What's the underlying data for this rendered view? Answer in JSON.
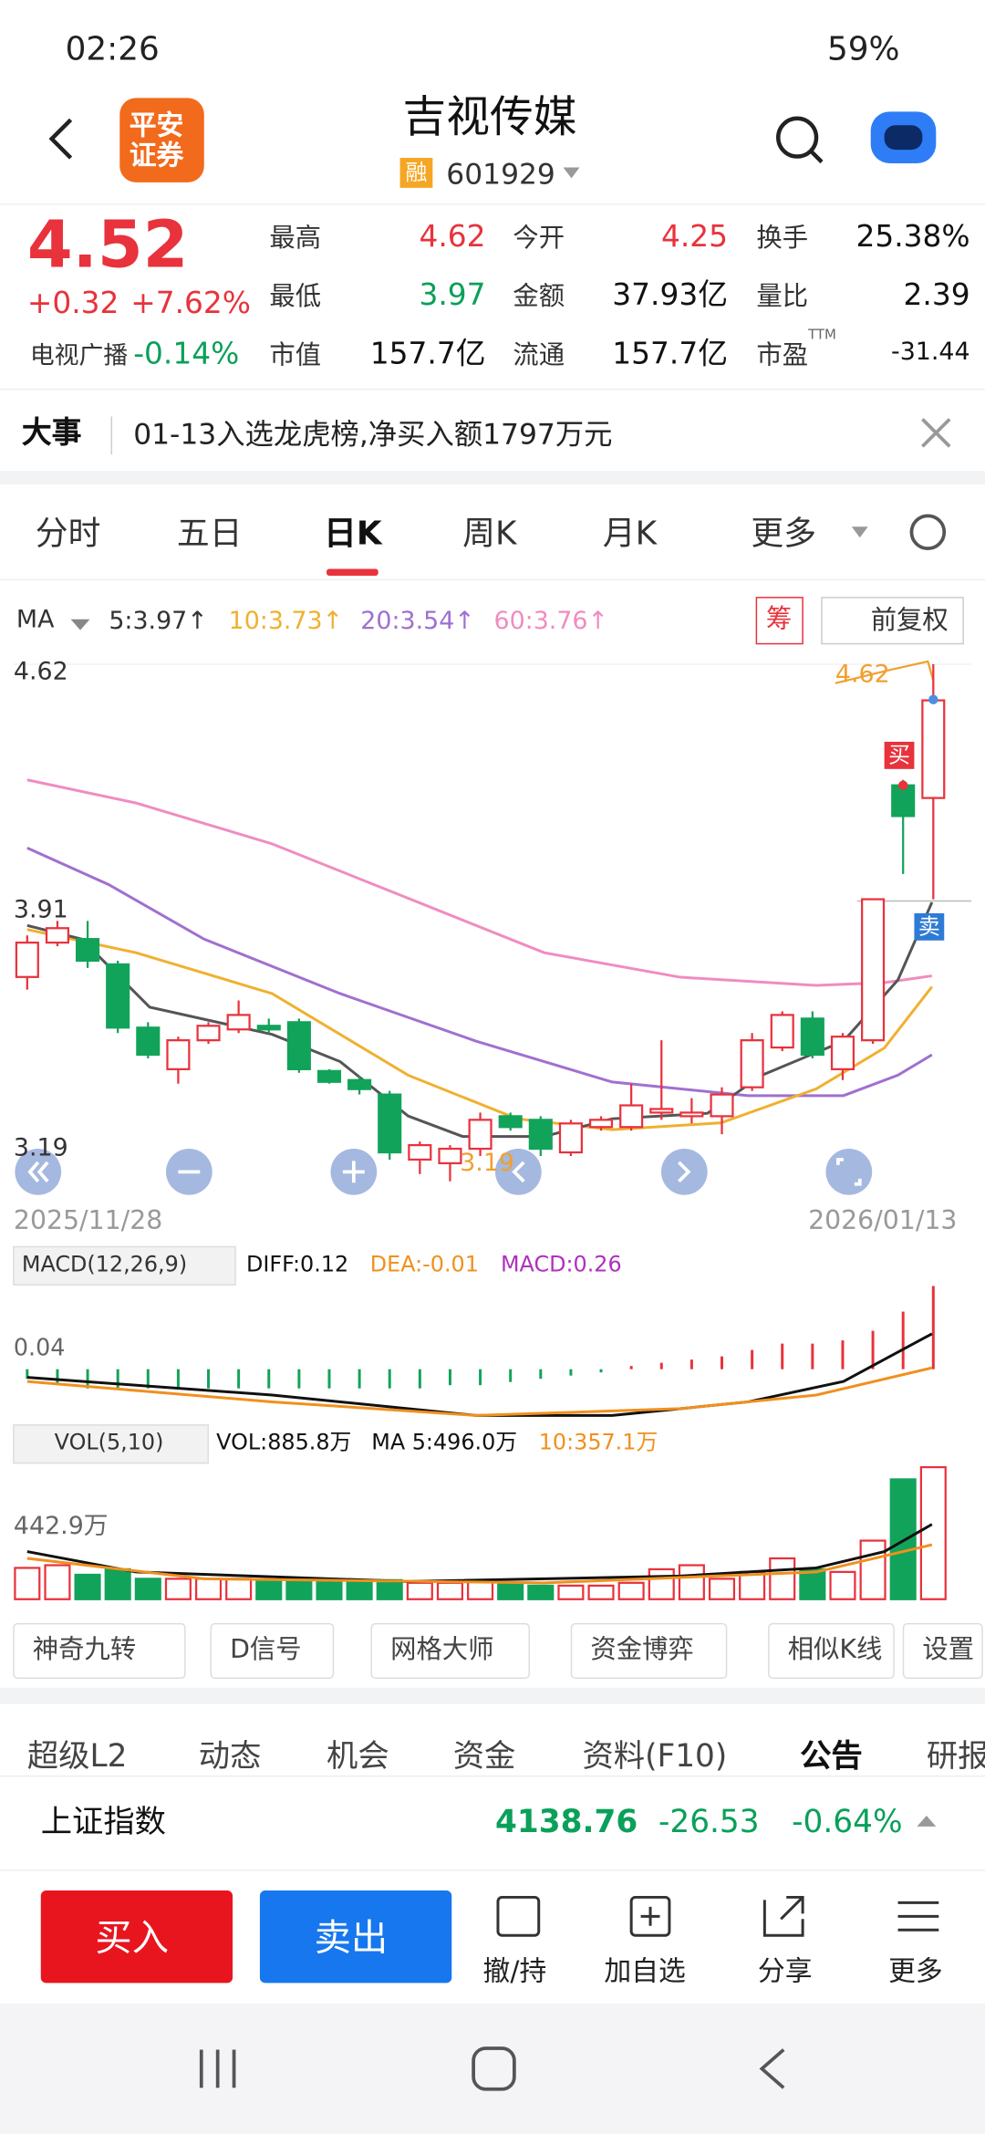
{
  "status": {
    "time": "02:26",
    "battery": "59%"
  },
  "header": {
    "logo_line1": "平安",
    "logo_line2": "证券",
    "title": "吉视传媒",
    "badge": "融",
    "code": "601929"
  },
  "quote": {
    "price": "4.52",
    "change": "+0.32",
    "pct": "+7.62%",
    "stats": [
      {
        "label": "最高",
        "value": "4.62"
      },
      {
        "label": "今开",
        "value": "4.25"
      },
      {
        "label": "换手",
        "value": "25.38%"
      },
      {
        "label": "最低",
        "value": "3.97"
      },
      {
        "label": "金额",
        "value": "37.93亿"
      },
      {
        "label": "量比",
        "value": "2.39"
      },
      {
        "label": "市值",
        "value": "157.7亿"
      },
      {
        "label": "流通",
        "value": "157.7亿"
      },
      {
        "label": "市盈",
        "sup": "TTM",
        "value": "-31.44"
      }
    ],
    "sector": "电视广播",
    "sector_change": "-0.14%"
  },
  "news": {
    "tag": "大事",
    "text": "01-13入选龙虎榜,净买入额1797万元"
  },
  "tabs": [
    "分时",
    "五日",
    "日K",
    "周K",
    "月K",
    "更多"
  ],
  "ma": {
    "label": "MA",
    "items": [
      "5:3.97↑",
      "10:3.73↑",
      "20:3.54↑",
      "60:3.76↑"
    ]
  },
  "chip": "筹",
  "adjust": "前复权",
  "kline": {
    "axis_labels": [
      "4.62",
      "3.91",
      "3.19"
    ],
    "high_marker": "4.62",
    "low_marker": "3.19",
    "buy": "买",
    "sell": "卖",
    "start_date": "2025/11/28",
    "end_date": "2026/01/13",
    "candles": [
      [
        3.755,
        3.87,
        3.72,
        3.85
      ],
      [
        3.85,
        3.91,
        3.84,
        3.89
      ],
      [
        3.86,
        3.91,
        3.78,
        3.8
      ],
      [
        3.79,
        3.8,
        3.6,
        3.615
      ],
      [
        3.615,
        3.63,
        3.53,
        3.54
      ],
      [
        3.5,
        3.59,
        3.46,
        3.58
      ],
      [
        3.58,
        3.63,
        3.57,
        3.62
      ],
      [
        3.61,
        3.69,
        3.6,
        3.65
      ],
      [
        3.62,
        3.64,
        3.6,
        3.61
      ],
      [
        3.63,
        3.64,
        3.49,
        3.5
      ],
      [
        3.495,
        3.5,
        3.46,
        3.465
      ],
      [
        3.47,
        3.48,
        3.43,
        3.445
      ],
      [
        3.43,
        3.44,
        3.25,
        3.27
      ],
      [
        3.25,
        3.3,
        3.21,
        3.29
      ],
      [
        3.24,
        3.29,
        3.19,
        3.28
      ],
      [
        3.28,
        3.38,
        3.26,
        3.36
      ],
      [
        3.37,
        3.38,
        3.33,
        3.34
      ],
      [
        3.36,
        3.37,
        3.26,
        3.28
      ],
      [
        3.27,
        3.36,
        3.26,
        3.35
      ],
      [
        3.34,
        3.37,
        3.33,
        3.36
      ],
      [
        3.34,
        3.46,
        3.33,
        3.4
      ],
      [
        3.38,
        3.58,
        3.36,
        3.39
      ],
      [
        3.37,
        3.42,
        3.35,
        3.38
      ],
      [
        3.37,
        3.45,
        3.32,
        3.43
      ],
      [
        3.45,
        3.6,
        3.44,
        3.58
      ],
      [
        3.56,
        3.66,
        3.55,
        3.65
      ],
      [
        3.64,
        3.66,
        3.53,
        3.54
      ],
      [
        3.5,
        3.6,
        3.47,
        3.59
      ],
      [
        3.58,
        3.97,
        3.57,
        3.97
      ],
      [
        4.285,
        4.3,
        4.04,
        4.2
      ],
      [
        4.25,
        4.62,
        3.97,
        4.52
      ]
    ],
    "volumes": [
      210,
      228,
      164,
      201,
      137,
      137,
      137,
      137,
      128,
      128,
      128,
      128,
      128,
      110,
      110,
      128,
      110,
      91,
      91,
      91,
      110,
      201,
      228,
      137,
      183,
      274,
      201,
      183,
      393,
      804,
      885.8
    ],
    "macd": [
      -0.03,
      -0.05,
      -0.06,
      -0.06,
      -0.06,
      -0.06,
      -0.06,
      -0.06,
      -0.06,
      -0.06,
      -0.06,
      -0.06,
      -0.06,
      -0.06,
      -0.05,
      -0.05,
      -0.04,
      -0.03,
      -0.02,
      -0.01,
      0.01,
      0.02,
      0.03,
      0.04,
      0.06,
      0.08,
      0.08,
      0.09,
      0.12,
      0.18,
      0.26
    ]
  },
  "macd_legend": {
    "name": "MACD(12,26,9)",
    "diff": "DIFF:0.12",
    "dea": "DEA:-0.01",
    "macd": "MACD:0.26",
    "axis": "0.04"
  },
  "vol_legend": {
    "name": "VOL(5,10)",
    "vol": "VOL:885.8万",
    "ma5": "MA 5:496.0万",
    "ma10": "10:357.1万",
    "axis": "442.9万"
  },
  "tools": [
    "神奇九转",
    "D信号",
    "网格大师",
    "资金博弈",
    "相似K线",
    "设置"
  ],
  "bottom_tabs": [
    "超级L2",
    "动态",
    "机会",
    "资金",
    "资料(F10)",
    "公告",
    "研报"
  ],
  "index": {
    "name": "上证指数",
    "value": "4138.76",
    "change": "-26.53",
    "pct": "-0.64%"
  },
  "actions": {
    "buy": "买入",
    "sell": "卖出",
    "items": [
      "撤/持",
      "加自选",
      "分享",
      "更多"
    ]
  }
}
